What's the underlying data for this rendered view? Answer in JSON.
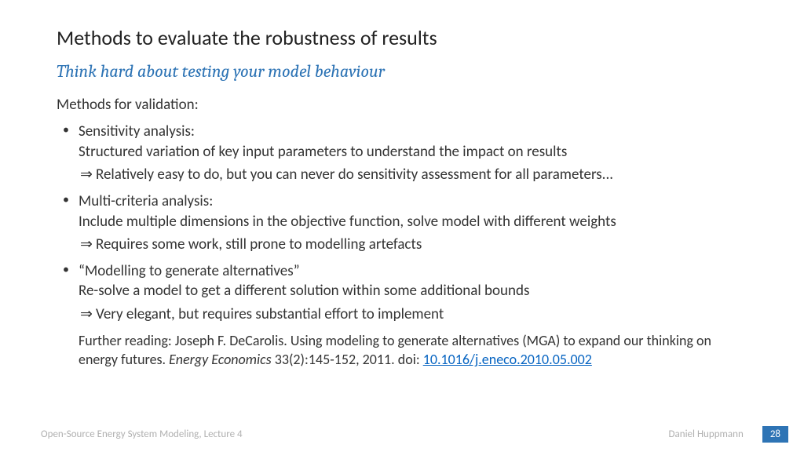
{
  "title": "Methods to evaluate the robustness of results",
  "subtitle": "Think hard about testing your model behaviour",
  "intro": "Methods for validation:",
  "bullets": [
    {
      "head": "Sensitivity analysis:",
      "desc": "Structured variation of key input parameters to understand the impact on results",
      "arrow": "Relatively easy to do, but you can never do sensitivity assessment for all parameters..."
    },
    {
      "head": "Multi-criteria analysis:",
      "desc": "Include multiple dimensions in the objective function, solve model with different weights",
      "arrow": "Requires some work, still prone to modelling artefacts"
    },
    {
      "head": "“Modelling to generate alternatives”",
      "desc": "Re-solve a model to get a different solution within some additional bounds",
      "arrow": "Very elegant, but requires substantial effort to implement"
    }
  ],
  "reading": {
    "prefix": "Further reading: Joseph F. DeCarolis. Using modeling to generate alternatives (MGA) to expand our thinking on energy futures. ",
    "journal": "Energy Economics",
    "rest": " 33(2):145-152, 2011. doi: ",
    "doi": "10.1016/j.eneco.2010.05.002"
  },
  "footer": {
    "left": "Open-Source Energy System Modeling, Lecture 4",
    "author": "Daniel Huppmann",
    "page": "28"
  },
  "colors": {
    "accent": "#2e74b5",
    "text": "#333333",
    "footer_text": "#b0b0b0",
    "link": "#0563c1",
    "background": "#ffffff"
  },
  "arrow_glyph": "⇒"
}
